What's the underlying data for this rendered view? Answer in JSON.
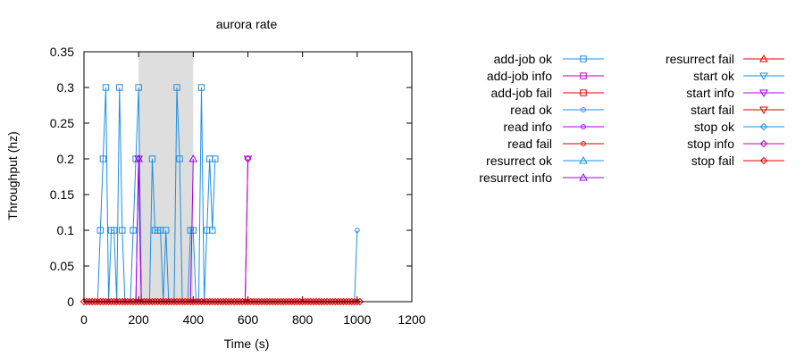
{
  "chart_data": {
    "type": "line",
    "title": "aurora rate",
    "xlabel": "Time (s)",
    "ylabel": "Throughput (hz)",
    "xlim": [
      0,
      1200
    ],
    "ylim": [
      0,
      0.35
    ],
    "xticks": [
      "0",
      "200",
      "400",
      "600",
      "800",
      "1000",
      "1200"
    ],
    "yticks": [
      "0",
      "0.05",
      "0.1",
      "0.15",
      "0.2",
      "0.25",
      "0.3",
      "0.35"
    ],
    "shaded_region": [
      200,
      400
    ],
    "grid": false,
    "legend_position": "right",
    "series": [
      {
        "name": "add-job ok",
        "color": "#1e8fe0",
        "marker": "square",
        "x": [
          60,
          70,
          80,
          100,
          110,
          130,
          140,
          180,
          190,
          200,
          250,
          260,
          270,
          280,
          300,
          340,
          350,
          390,
          400,
          430,
          450,
          460,
          470,
          480
        ],
        "y": [
          0.1,
          0.2,
          0.3,
          0.1,
          0.1,
          0.3,
          0.1,
          0.1,
          0.2,
          0.3,
          0.2,
          0.1,
          0.1,
          0.1,
          0.1,
          0.3,
          0.2,
          0.1,
          0.1,
          0.3,
          0.1,
          0.2,
          0.1,
          0.2
        ]
      },
      {
        "name": "add-job info",
        "color": "#c000c0",
        "marker": "square",
        "x": [],
        "y": []
      },
      {
        "name": "add-job fail",
        "color": "#e00000",
        "marker": "square",
        "x": [],
        "y": []
      },
      {
        "name": "read ok",
        "color": "#1e8fe0",
        "marker": "circle",
        "x": [
          1000
        ],
        "y": [
          0.1
        ]
      },
      {
        "name": "read info",
        "color": "#a000e0",
        "marker": "circle",
        "x": [],
        "y": []
      },
      {
        "name": "read fail",
        "color": "#e00000",
        "marker": "circle",
        "x": [],
        "y": []
      },
      {
        "name": "resurrect ok",
        "color": "#1e8fe0",
        "marker": "triangle-up",
        "x": [],
        "y": []
      },
      {
        "name": "resurrect info",
        "color": "#a000e0",
        "marker": "triangle-up",
        "x": [
          200,
          400
        ],
        "y": [
          0.2,
          0.2
        ]
      },
      {
        "name": "resurrect fail",
        "color": "#e00000",
        "marker": "triangle-up",
        "x": [],
        "y": []
      },
      {
        "name": "start ok",
        "color": "#1e8fe0",
        "marker": "triangle-down",
        "x": [],
        "y": []
      },
      {
        "name": "start info",
        "color": "#a000e0",
        "marker": "triangle-down",
        "x": [
          200,
          600
        ],
        "y": [
          0.2,
          0.2
        ]
      },
      {
        "name": "start fail",
        "color": "#e00000",
        "marker": "triangle-down",
        "x": [],
        "y": []
      },
      {
        "name": "stop ok",
        "color": "#1e8fe0",
        "marker": "diamond",
        "x": [],
        "y": []
      },
      {
        "name": "stop info",
        "color": "#c000c0",
        "marker": "diamond",
        "x": [
          600
        ],
        "y": [
          0.2
        ]
      },
      {
        "name": "stop fail",
        "color": "#e00000",
        "marker": "diamond",
        "x": [],
        "y": []
      }
    ],
    "zero_baseline": {
      "color": "#e00000",
      "marker": "diamond",
      "x_start": 0,
      "x_end": 1010,
      "step": 10
    }
  }
}
